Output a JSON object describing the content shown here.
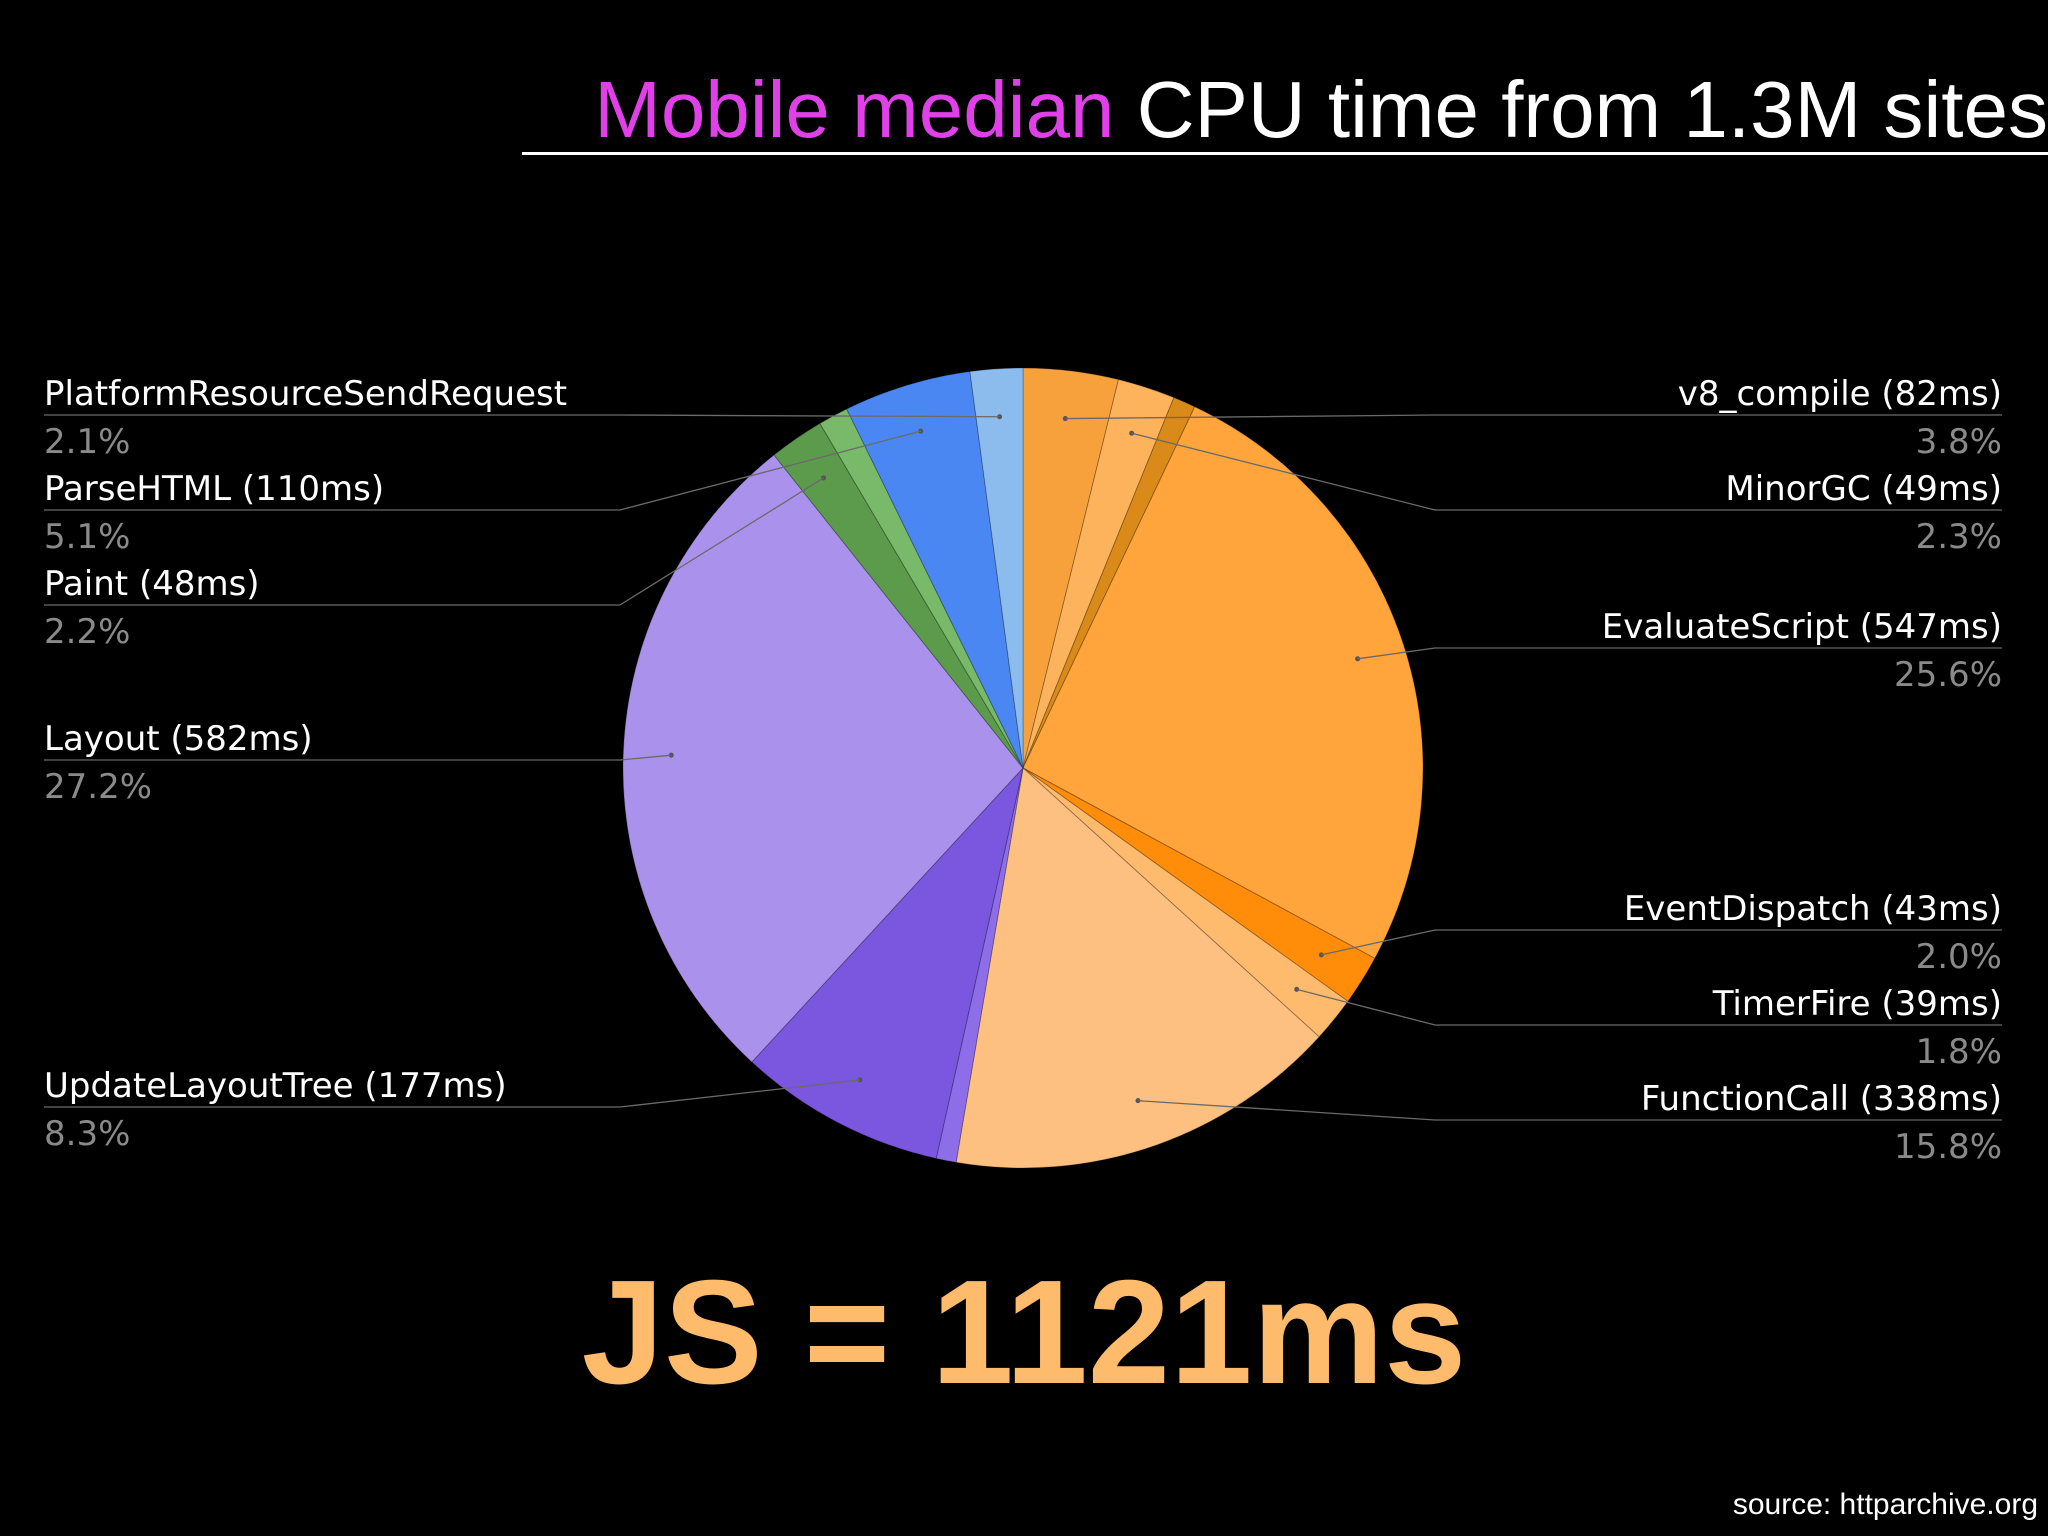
{
  "title": {
    "accent": "Mobile median",
    "rest": "CPU time from 1.3M sites"
  },
  "chart_data": {
    "type": "pie",
    "title": "Mobile median CPU time from 1.3M sites",
    "slices": [
      {
        "label": "v8_compile (82ms)",
        "percent": "3.8%",
        "value": 3.8,
        "color": "#f6a13b"
      },
      {
        "label": "MinorGC (49ms)",
        "percent": "2.3%",
        "value": 2.3,
        "color": "#fdb35b"
      },
      {
        "label": "",
        "percent": "",
        "value": 0.9,
        "color": "#d98a18"
      },
      {
        "label": "EvaluateScript (547ms)",
        "percent": "25.6%",
        "value": 25.6,
        "color": "#ffa53c"
      },
      {
        "label": "EventDispatch (43ms)",
        "percent": "2.0%",
        "value": 2.0,
        "color": "#ff8d0a"
      },
      {
        "label": "TimerFire (39ms)",
        "percent": "1.8%",
        "value": 1.8,
        "color": "#ffbb6d"
      },
      {
        "label": "FunctionCall (338ms)",
        "percent": "15.8%",
        "value": 15.8,
        "color": "#fec080"
      },
      {
        "label": "",
        "percent": "",
        "value": 0.8,
        "color": "#8d6ee8"
      },
      {
        "label": "UpdateLayoutTree (177ms)",
        "percent": "8.3%",
        "value": 8.3,
        "color": "#7b57e0"
      },
      {
        "label": "Layout (582ms)",
        "percent": "27.2%",
        "value": 27.2,
        "color": "#aa92ec"
      },
      {
        "label": "Paint (48ms)",
        "percent": "2.2%",
        "value": 2.2,
        "color": "#5c9a4c"
      },
      {
        "label": "",
        "percent": "",
        "value": 1.2,
        "color": "#78b96a"
      },
      {
        "label": "ParseHTML (110ms)",
        "percent": "5.1%",
        "value": 5.1,
        "color": "#4a87f2"
      },
      {
        "label": "PlatformResourceSendRequest",
        "percent": "2.1%",
        "value": 2.1,
        "color": "#8cbcee"
      }
    ]
  },
  "headline": "JS = 1121ms",
  "source": "source: httparchive.org"
}
